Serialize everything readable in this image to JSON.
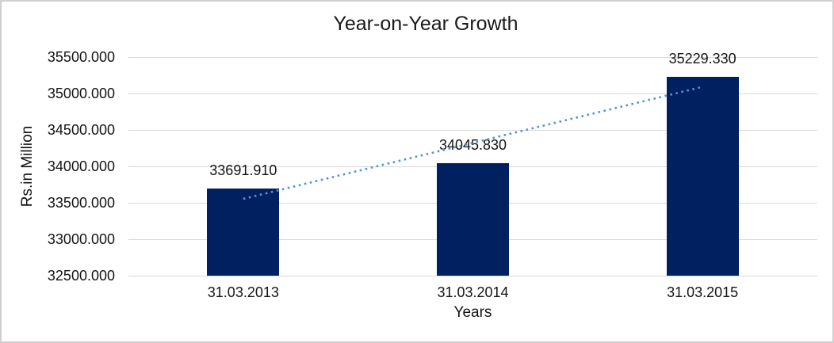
{
  "frame": {
    "background": "#ffffff",
    "border_color": "#d0cece"
  },
  "chart_data": {
    "type": "bar",
    "title": "Year-on-Year Growth",
    "xlabel": "Years",
    "ylabel": "Rs.in Million",
    "categories": [
      "31.03.2013",
      "31.03.2014",
      "31.03.2015"
    ],
    "values": [
      33691.91,
      34045.83,
      35229.33
    ],
    "data_labels": [
      "33691.910",
      "34045.830",
      "35229.330"
    ],
    "ylim": [
      32500,
      35500
    ],
    "ytick_step": 500,
    "ytick_labels": [
      "32500.000",
      "33000.000",
      "33500.000",
      "34000.000",
      "34500.000",
      "35000.000",
      "35500.000"
    ],
    "grid": true,
    "legend": "none",
    "bar_color": "#002060",
    "gridline_color": "#d9d9d9",
    "axis_line_color": "#d9d9d9",
    "text_color": "#141414",
    "trendline": {
      "type": "linear",
      "style": "dotted",
      "color": "#5b8fd4"
    }
  }
}
